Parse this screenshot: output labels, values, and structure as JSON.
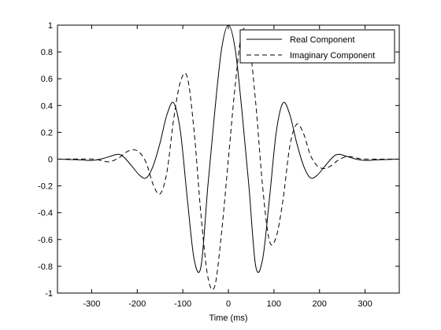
{
  "chart_data": {
    "type": "line",
    "title": "",
    "xlabel": "Time (ms)",
    "ylabel": "",
    "xlim": [
      -375,
      375
    ],
    "ylim": [
      -1,
      1
    ],
    "grid": false,
    "legend_position": "top-right",
    "x_ticks": [
      -300,
      -200,
      -100,
      0,
      100,
      200,
      300
    ],
    "x_tick_labels": [
      "-300",
      "-200",
      "-100",
      "0",
      "100",
      "200",
      "300"
    ],
    "y_ticks": [
      -1,
      -0.8,
      -0.6,
      -0.4,
      -0.2,
      0,
      0.2,
      0.4,
      0.6,
      0.8,
      1
    ],
    "y_tick_labels": [
      "-1",
      "-0.8",
      "-0.6",
      "-0.4",
      "-0.2",
      "0",
      "0.2",
      "0.4",
      "0.6",
      "0.8",
      "1"
    ],
    "series": [
      {
        "name": "Real Component",
        "line_style": "solid",
        "color": "#000000",
        "x": [
          -375,
          -330,
          -300,
          -280,
          -260,
          -245,
          -235,
          -225,
          -210,
          -195,
          -180,
          -165,
          -150,
          -135,
          -120,
          -105,
          -90,
          -75,
          -60,
          -45,
          -30,
          -15,
          0,
          15,
          30,
          45,
          60,
          75,
          90,
          105,
          120,
          135,
          150,
          165,
          180,
          195,
          210,
          225,
          235,
          245,
          260,
          280,
          300,
          330,
          375
        ],
        "y": [
          0,
          -0.005,
          -0.01,
          0.0,
          0.02,
          0.035,
          0.03,
          0.0,
          -0.06,
          -0.12,
          -0.14,
          -0.05,
          0.12,
          0.33,
          0.42,
          0.2,
          -0.3,
          -0.75,
          -0.8,
          -0.2,
          0.35,
          0.82,
          1.0,
          0.82,
          0.35,
          -0.2,
          -0.8,
          -0.75,
          -0.3,
          0.2,
          0.42,
          0.33,
          0.12,
          -0.05,
          -0.14,
          -0.12,
          -0.06,
          0.0,
          0.03,
          0.035,
          0.02,
          0.0,
          -0.01,
          -0.005,
          0
        ]
      },
      {
        "name": "Imaginary Component",
        "line_style": "dashed",
        "color": "#000000",
        "x": [
          -375,
          -300,
          -280,
          -265,
          -255,
          -240,
          -225,
          -210,
          -195,
          -180,
          -165,
          -150,
          -135,
          -120,
          -105,
          -90,
          -75,
          -60,
          -45,
          -30,
          -15,
          0,
          15,
          30,
          45,
          60,
          75,
          90,
          105,
          120,
          135,
          150,
          165,
          180,
          195,
          210,
          225,
          240,
          255,
          265,
          280,
          300,
          375
        ],
        "y": [
          0,
          0,
          -0.01,
          -0.02,
          -0.015,
          0.01,
          0.05,
          0.07,
          0.05,
          -0.03,
          -0.19,
          -0.26,
          -0.1,
          0.3,
          0.58,
          0.61,
          0.2,
          -0.42,
          -0.88,
          -0.95,
          -0.55,
          0.0,
          0.55,
          0.95,
          0.88,
          0.42,
          -0.2,
          -0.61,
          -0.58,
          -0.3,
          0.1,
          0.26,
          0.19,
          0.03,
          -0.05,
          -0.07,
          -0.05,
          -0.01,
          0.015,
          0.02,
          0.01,
          0,
          0
        ]
      }
    ]
  }
}
